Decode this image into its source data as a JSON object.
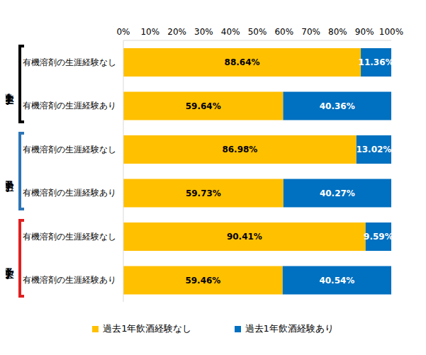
{
  "chart_data": {
    "type": "bar",
    "orientation": "horizontal",
    "stacked": true,
    "data_labels": true,
    "grid": false,
    "legend": "bottom",
    "categories": [
      "有機溶剤の生涯経験なし",
      "有機溶剤の生涯経験あり",
      "有機溶剤の生涯経験なし",
      "有機溶剤の生涯経験あり",
      "有機溶剤の生涯経験なし",
      "有機溶剤の生涯経験あり"
    ],
    "groups": [
      {
        "name": "中学生全体",
        "size": 2,
        "color": "#000000"
      },
      {
        "name": "男子中学生",
        "size": 2,
        "color": "#2E75B6"
      },
      {
        "name": "女子中学生",
        "size": 2,
        "color": "#E02020"
      }
    ],
    "series": [
      {
        "name": "過去1年飲酒経験なし",
        "color": "#FFC000",
        "values": [
          88.64,
          59.64,
          86.98,
          59.73,
          90.41,
          59.46
        ],
        "value_labels": [
          "88.64%",
          "59.64%",
          "86.98%",
          "59.73%",
          "90.41%",
          "59.46%"
        ]
      },
      {
        "name": "過去1年飲酒経験あり",
        "color": "#0070C0",
        "values": [
          11.36,
          40.36,
          13.02,
          40.27,
          9.59,
          40.54
        ],
        "value_labels": [
          "11.36%",
          "40.36%",
          "13.02%",
          "40.27%",
          "9.59%",
          "40.54%"
        ]
      }
    ],
    "xlim": [
      0,
      100
    ],
    "xticks": [
      {
        "value": 0,
        "label": "0%"
      },
      {
        "value": 10,
        "label": "10%"
      },
      {
        "value": 20,
        "label": "20%"
      },
      {
        "value": 30,
        "label": "30%"
      },
      {
        "value": 40,
        "label": "40%"
      },
      {
        "value": 50,
        "label": "50%"
      },
      {
        "value": 60,
        "label": "60%"
      },
      {
        "value": 70,
        "label": "70%"
      },
      {
        "value": 80,
        "label": "80%"
      },
      {
        "value": 90,
        "label": "90%"
      },
      {
        "value": 100,
        "label": "100%"
      }
    ]
  }
}
